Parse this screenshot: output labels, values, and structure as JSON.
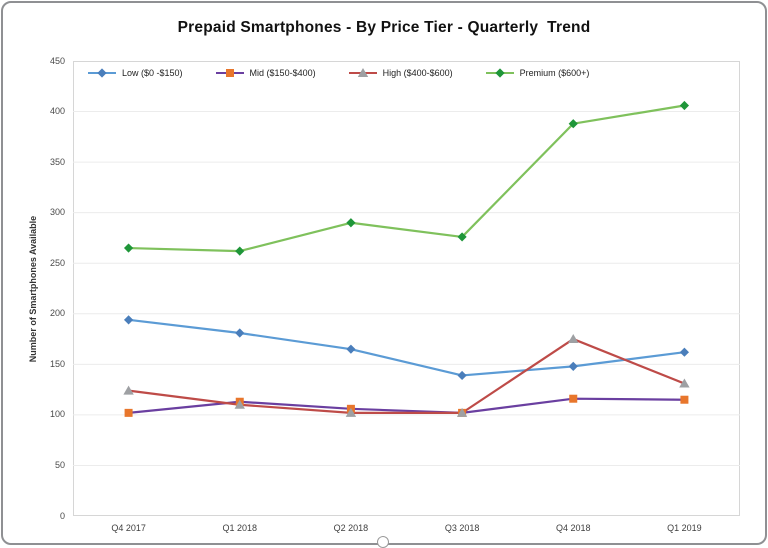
{
  "window": {
    "border_color": "#8f9093",
    "background": "#ffffff"
  },
  "title": "Prepaid Smartphones - By Price Tier - Quarterly  Trend",
  "chart_data": {
    "type": "line",
    "title": "Prepaid Smartphones - By Price Tier - Quarterly  Trend",
    "xlabel": "",
    "ylabel": "Number of Smartphones Available",
    "ylim": [
      0,
      450
    ],
    "ytick_step": 50,
    "grid": true,
    "grid_color": "#ececec",
    "plot_border_color": "#d6d6d6",
    "legend_position": "top-left-inside",
    "categories": [
      "Q4 2017",
      "Q1 2018",
      "Q2 2018",
      "Q3 2018",
      "Q4 2018",
      "Q1 2019"
    ],
    "series": [
      {
        "name": "Low ($0 -$150)",
        "values": [
          194,
          181,
          165,
          139,
          148,
          162
        ],
        "line_color": "#5b9bd5",
        "marker": "diamond",
        "marker_color": "#4a7ebb"
      },
      {
        "name": "Mid ($150-$400)",
        "values": [
          102,
          113,
          106,
          102,
          116,
          115
        ],
        "line_color": "#6a3fa0",
        "marker": "square",
        "marker_color": "#e8762c"
      },
      {
        "name": "High ($400-$600)",
        "values": [
          124,
          110,
          102,
          102,
          175,
          131
        ],
        "line_color": "#be4b48",
        "marker": "triangle",
        "marker_color": "#9ea0a3"
      },
      {
        "name": "Premium ($600+)",
        "values": [
          265,
          262,
          290,
          276,
          388,
          406
        ],
        "line_color": "#7fc15c",
        "marker": "diamond",
        "marker_color": "#1f9639"
      }
    ]
  }
}
